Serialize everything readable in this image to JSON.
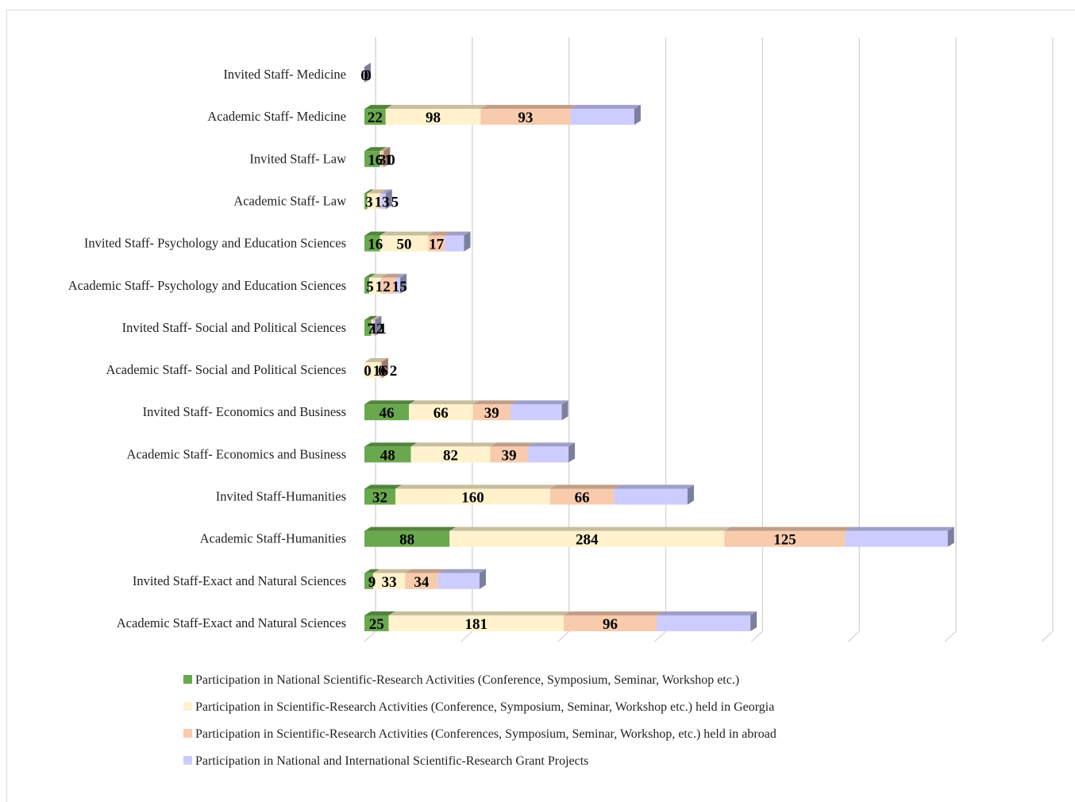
{
  "chart_data": {
    "type": "bar",
    "orientation": "horizontal",
    "stacked": true,
    "style": "3d",
    "title": "",
    "xlabel": "",
    "ylabel": "",
    "grid": true,
    "legend_position": "bottom",
    "categories": [
      "Invited Staff- Medicine",
      "Academic Staff- Medicine",
      "Invited Staff- Law",
      "Academic Staff- Law",
      "Invited Staff- Psychology and Education Sciences",
      "Academic Staff- Psychology and Education Sciences",
      "Invited Staff- Social and Political Sciences",
      "Academic Staff- Social and Political Sciences",
      "Invited Staff- Economics and Business",
      "Academic Staff- Economics and Business",
      "Invited Staff-Humanities",
      "Academic Staff-Humanities",
      "Invited Staff-Exact and Natural Sciences",
      "Academic Staff-Exact and Natural Sciences"
    ],
    "series": [
      {
        "name": "Participation in National Scientific-Research Activities (Conference, Symposium, Seminar, Workshop etc.)",
        "color": "#6aa84f",
        "values": [
          0,
          22,
          16,
          3,
          16,
          5,
          7,
          0,
          46,
          48,
          32,
          88,
          9,
          25
        ]
      },
      {
        "name": "Participation in Scientific-Research Activities (Conference, Symposium, Seminar, Workshop etc.)  held in Georgia",
        "color": "#fff2cc",
        "values": [
          0,
          98,
          1,
          13,
          50,
          12,
          2,
          16,
          66,
          82,
          160,
          284,
          33,
          181
        ]
      },
      {
        "name": "Participation in Scientific-Research Activities (Conferences, Symposium, Seminar, Workshop, etc.) held in abroad",
        "color": "#f8cbad",
        "values": [
          0,
          93,
          3,
          1,
          17,
          15,
          1,
          2,
          39,
          39,
          66,
          125,
          34,
          96
        ]
      },
      {
        "name": "Participation in National and International Scientific-Research Grant Projects",
        "color": "#ccccff",
        "values": [
          0,
          66,
          0,
          5,
          20,
          5,
          1,
          0,
          53,
          42,
          76,
          106,
          43,
          97
        ]
      }
    ],
    "data_labels": [
      [
        "0",
        "0",
        "",
        ""
      ],
      [
        "22",
        "98",
        "93",
        ""
      ],
      [
        "16",
        "1",
        "3",
        "0"
      ],
      [
        "3",
        "13",
        "",
        "5"
      ],
      [
        "16",
        "50",
        "17",
        ""
      ],
      [
        "5",
        "12",
        "15",
        ""
      ],
      [
        "7",
        "2",
        "1",
        "1"
      ],
      [
        "0",
        "16",
        "2",
        "0"
      ],
      [
        "46",
        "66",
        "39",
        ""
      ],
      [
        "48",
        "82",
        "39",
        ""
      ],
      [
        "32",
        "160",
        "66",
        ""
      ],
      [
        "88",
        "284",
        "125",
        ""
      ],
      [
        "9",
        "33",
        "34",
        ""
      ],
      [
        "25",
        "181",
        "96",
        ""
      ]
    ],
    "xlim": [
      0,
      700
    ]
  }
}
